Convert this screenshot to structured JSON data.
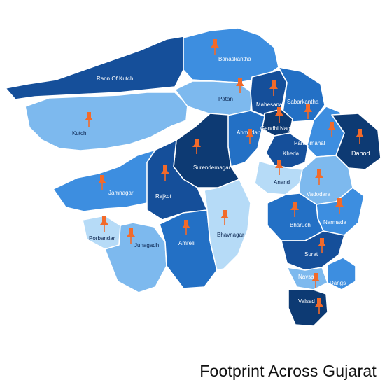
{
  "caption": "Footprint Across Gujarat",
  "colors": {
    "navy": "#0d3a73",
    "deep": "#154f9a",
    "mid": "#2370c5",
    "bright": "#3d8ee0",
    "sky": "#7db9ee",
    "pale": "#b6dbf7",
    "pin": "#f26a2a"
  },
  "districts": [
    {
      "name": "Banaskantha"
    },
    {
      "name": "Rann Of Kutch"
    },
    {
      "name": "Patan"
    },
    {
      "name": "Mahesana"
    },
    {
      "name": "Sabarkantha"
    },
    {
      "name": "Kutch"
    },
    {
      "name": "Gandhi Nagar"
    },
    {
      "name": "Panchmahal"
    },
    {
      "name": "Ahmedabad"
    },
    {
      "name": "Dahod"
    },
    {
      "name": "Surendernagar"
    },
    {
      "name": "Kheda"
    },
    {
      "name": "Anand"
    },
    {
      "name": "Jamnagar"
    },
    {
      "name": "Rajkot"
    },
    {
      "name": "Vadodara"
    },
    {
      "name": "Bhavnagar"
    },
    {
      "name": "Narmada"
    },
    {
      "name": "Bharuch"
    },
    {
      "name": "Porbandar"
    },
    {
      "name": "Junagadh"
    },
    {
      "name": "Amreli"
    },
    {
      "name": "Surat"
    },
    {
      "name": "Navsari"
    },
    {
      "name": "Dangs"
    },
    {
      "name": "Valsad"
    }
  ]
}
